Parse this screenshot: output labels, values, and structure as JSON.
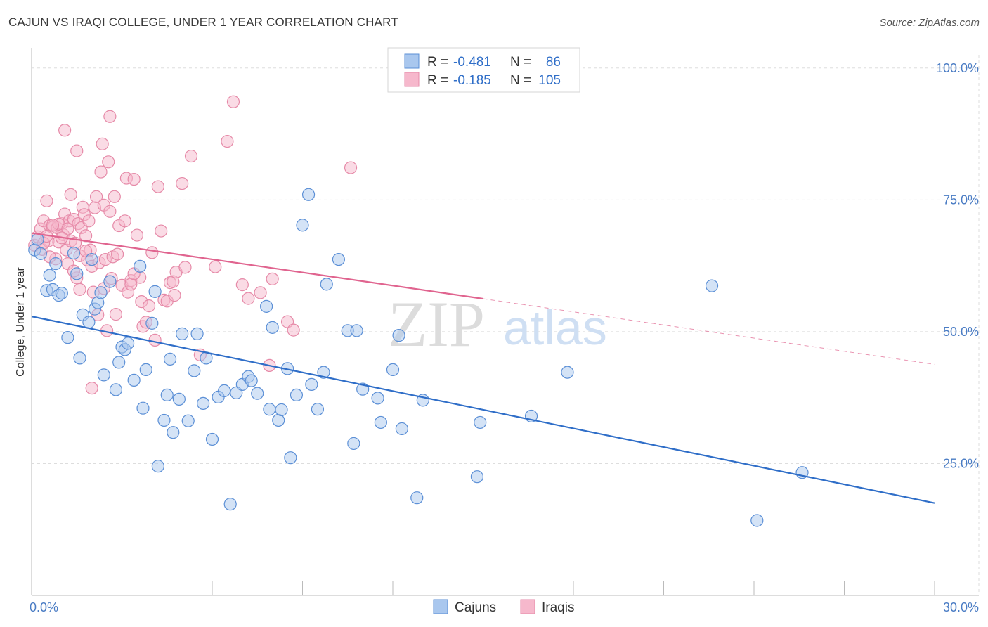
{
  "title": "CAJUN VS IRAQI COLLEGE, UNDER 1 YEAR CORRELATION CHART",
  "source": "Source: ZipAtlas.com",
  "watermark": {
    "zip": "ZIP",
    "atlas": "atlas"
  },
  "colors": {
    "cajuns_fill": "#a9c7ee",
    "cajuns_stroke": "#5b8fd6",
    "cajuns_line": "#2f6ec8",
    "iraqis_fill": "#f6b8cc",
    "iraqis_stroke": "#e68aa8",
    "iraqis_line": "#e0648f",
    "grid": "#dddddd",
    "tick_label": "#4a7cc4"
  },
  "legend": {
    "rows": [
      {
        "r_label": "R = ",
        "r_value": "-0.481",
        "n_label": "N = ",
        "n_value": "86"
      },
      {
        "r_label": "R = ",
        "r_value": "-0.185",
        "n_label": "N = ",
        "n_value": "105"
      }
    ]
  },
  "bottom_legend": [
    "Cajuns",
    "Iraqis"
  ],
  "chart_data": {
    "type": "scatter",
    "title": "CAJUN VS IRAQI COLLEGE, UNDER 1 YEAR CORRELATION CHART",
    "xlabel": "",
    "ylabel": "College, Under 1 year",
    "xlim": [
      0,
      30
    ],
    "ylim": [
      0,
      102.5
    ],
    "x_tick_labels": [
      "0.0%",
      "30.0%"
    ],
    "y_tick_labels": [
      "100.0%",
      "75.0%",
      "50.0%",
      "25.0%"
    ],
    "y_ticks": [
      100,
      75,
      50,
      25
    ],
    "grid": true,
    "legend_position": "top-center",
    "series": [
      {
        "name": "Cajuns",
        "r": -0.481,
        "n": 86,
        "trend": {
          "x": [
            0,
            30
          ],
          "y": [
            52.9,
            17.5
          ],
          "dashed_from": null
        },
        "points": [
          [
            0.1,
            65.5
          ],
          [
            0.3,
            64.8
          ],
          [
            0.5,
            57.8
          ],
          [
            0.6,
            60.7
          ],
          [
            0.7,
            58.0
          ],
          [
            0.8,
            62.9
          ],
          [
            0.9,
            56.9
          ],
          [
            1.0,
            57.3
          ],
          [
            1.2,
            48.9
          ],
          [
            1.4,
            64.9
          ],
          [
            1.5,
            61.0
          ],
          [
            1.6,
            45.0
          ],
          [
            1.7,
            53.2
          ],
          [
            1.9,
            51.8
          ],
          [
            2.0,
            63.7
          ],
          [
            2.1,
            54.3
          ],
          [
            2.2,
            55.5
          ],
          [
            2.3,
            57.4
          ],
          [
            2.4,
            41.8
          ],
          [
            2.6,
            59.5
          ],
          [
            2.8,
            39.0
          ],
          [
            2.9,
            44.2
          ],
          [
            3.0,
            47.1
          ],
          [
            3.1,
            46.6
          ],
          [
            3.2,
            47.8
          ],
          [
            3.4,
            40.8
          ],
          [
            3.6,
            62.4
          ],
          [
            3.7,
            35.5
          ],
          [
            3.8,
            42.8
          ],
          [
            4.0,
            51.6
          ],
          [
            4.1,
            57.6
          ],
          [
            4.2,
            24.5
          ],
          [
            4.4,
            33.2
          ],
          [
            4.5,
            38.0
          ],
          [
            4.6,
            44.8
          ],
          [
            4.7,
            30.9
          ],
          [
            4.9,
            37.2
          ],
          [
            5.0,
            49.6
          ],
          [
            5.2,
            33.1
          ],
          [
            5.4,
            42.6
          ],
          [
            5.5,
            49.6
          ],
          [
            5.7,
            36.4
          ],
          [
            5.8,
            45.0
          ],
          [
            6.0,
            29.6
          ],
          [
            6.2,
            37.6
          ],
          [
            6.4,
            38.8
          ],
          [
            6.6,
            17.3
          ],
          [
            6.8,
            38.4
          ],
          [
            7.0,
            40.0
          ],
          [
            7.2,
            41.5
          ],
          [
            7.3,
            40.7
          ],
          [
            7.5,
            38.3
          ],
          [
            7.8,
            54.8
          ],
          [
            7.9,
            35.3
          ],
          [
            8.0,
            50.8
          ],
          [
            8.2,
            33.2
          ],
          [
            8.3,
            35.2
          ],
          [
            8.5,
            43.0
          ],
          [
            8.6,
            26.1
          ],
          [
            8.8,
            38.0
          ],
          [
            9.0,
            70.2
          ],
          [
            9.2,
            76.0
          ],
          [
            9.3,
            40.0
          ],
          [
            9.5,
            35.3
          ],
          [
            9.7,
            42.3
          ],
          [
            9.8,
            59.0
          ],
          [
            10.2,
            63.7
          ],
          [
            10.5,
            50.2
          ],
          [
            10.7,
            28.8
          ],
          [
            10.8,
            50.2
          ],
          [
            11.0,
            39.1
          ],
          [
            11.5,
            37.4
          ],
          [
            11.6,
            32.8
          ],
          [
            12.0,
            42.8
          ],
          [
            12.2,
            49.3
          ],
          [
            12.3,
            31.6
          ],
          [
            12.8,
            18.5
          ],
          [
            13.0,
            37.0
          ],
          [
            14.8,
            22.5
          ],
          [
            14.9,
            32.8
          ],
          [
            16.6,
            34.0
          ],
          [
            17.8,
            42.3
          ],
          [
            22.6,
            58.7
          ],
          [
            24.1,
            14.2
          ],
          [
            25.6,
            23.3
          ],
          [
            0.2,
            67.5
          ]
        ]
      },
      {
        "name": "Iraqis",
        "r": -0.185,
        "n": 105,
        "trend": {
          "x": [
            0,
            30
          ],
          "y": [
            68.7,
            43.8
          ],
          "dashed_from": 15.0
        },
        "points": [
          [
            0.1,
            66.4
          ],
          [
            0.2,
            68.0
          ],
          [
            0.3,
            69.5
          ],
          [
            0.35,
            65.6
          ],
          [
            0.4,
            71.0
          ],
          [
            0.5,
            74.8
          ],
          [
            0.55,
            67.2
          ],
          [
            0.6,
            70.1
          ],
          [
            0.7,
            69.8
          ],
          [
            0.8,
            63.8
          ],
          [
            0.85,
            69.7
          ],
          [
            0.9,
            67.0
          ],
          [
            1.0,
            70.5
          ],
          [
            1.05,
            68.4
          ],
          [
            1.1,
            72.3
          ],
          [
            1.15,
            65.5
          ],
          [
            1.2,
            62.9
          ],
          [
            1.25,
            71.0
          ],
          [
            1.3,
            67.2
          ],
          [
            1.4,
            71.3
          ],
          [
            1.45,
            66.8
          ],
          [
            1.5,
            60.2
          ],
          [
            1.55,
            70.5
          ],
          [
            1.6,
            64.4
          ],
          [
            1.65,
            69.7
          ],
          [
            1.7,
            73.6
          ],
          [
            1.75,
            72.2
          ],
          [
            1.8,
            68.2
          ],
          [
            1.85,
            63.6
          ],
          [
            1.9,
            71.0
          ],
          [
            1.95,
            65.5
          ],
          [
            2.0,
            62.4
          ],
          [
            2.05,
            57.5
          ],
          [
            2.1,
            73.5
          ],
          [
            2.15,
            75.6
          ],
          [
            2.2,
            53.2
          ],
          [
            2.25,
            63.1
          ],
          [
            2.3,
            80.3
          ],
          [
            2.35,
            85.6
          ],
          [
            2.4,
            74.0
          ],
          [
            2.45,
            63.7
          ],
          [
            2.5,
            50.2
          ],
          [
            2.55,
            82.2
          ],
          [
            2.6,
            72.8
          ],
          [
            2.65,
            60.1
          ],
          [
            2.7,
            64.2
          ],
          [
            2.75,
            75.6
          ],
          [
            2.8,
            53.3
          ],
          [
            2.85,
            64.7
          ],
          [
            2.9,
            70.1
          ],
          [
            3.0,
            58.8
          ],
          [
            3.1,
            71.0
          ],
          [
            3.15,
            79.1
          ],
          [
            3.2,
            57.5
          ],
          [
            3.3,
            59.7
          ],
          [
            3.4,
            78.9
          ],
          [
            3.5,
            68.3
          ],
          [
            3.6,
            60.3
          ],
          [
            3.65,
            55.7
          ],
          [
            3.7,
            51.0
          ],
          [
            3.8,
            51.8
          ],
          [
            3.9,
            54.9
          ],
          [
            4.0,
            65.0
          ],
          [
            4.1,
            48.4
          ],
          [
            4.2,
            77.5
          ],
          [
            4.3,
            69.1
          ],
          [
            4.4,
            56.0
          ],
          [
            4.5,
            55.8
          ],
          [
            4.6,
            59.3
          ],
          [
            4.7,
            59.5
          ],
          [
            4.75,
            56.9
          ],
          [
            4.8,
            61.3
          ],
          [
            5.0,
            78.1
          ],
          [
            5.1,
            62.2
          ],
          [
            5.3,
            83.3
          ],
          [
            5.6,
            45.6
          ],
          [
            6.1,
            62.3
          ],
          [
            6.5,
            86.1
          ],
          [
            6.7,
            93.6
          ],
          [
            7.0,
            58.9
          ],
          [
            7.2,
            56.3
          ],
          [
            7.6,
            57.4
          ],
          [
            7.9,
            43.6
          ],
          [
            8.0,
            60.0
          ],
          [
            8.5,
            51.9
          ],
          [
            8.7,
            50.3
          ],
          [
            10.6,
            81.1
          ],
          [
            1.1,
            88.2
          ],
          [
            1.5,
            84.3
          ],
          [
            2.6,
            90.8
          ],
          [
            1.3,
            76.0
          ],
          [
            0.6,
            64.2
          ],
          [
            0.9,
            70.4
          ],
          [
            1.2,
            69.5
          ],
          [
            1.0,
            67.8
          ],
          [
            1.6,
            58.0
          ],
          [
            2.0,
            39.3
          ],
          [
            1.8,
            65.3
          ],
          [
            0.4,
            66.8
          ],
          [
            0.7,
            70.2
          ],
          [
            0.5,
            68.1
          ],
          [
            3.3,
            59.0
          ],
          [
            3.4,
            61.0
          ],
          [
            2.4,
            58.2
          ],
          [
            1.4,
            61.5
          ]
        ]
      }
    ]
  }
}
